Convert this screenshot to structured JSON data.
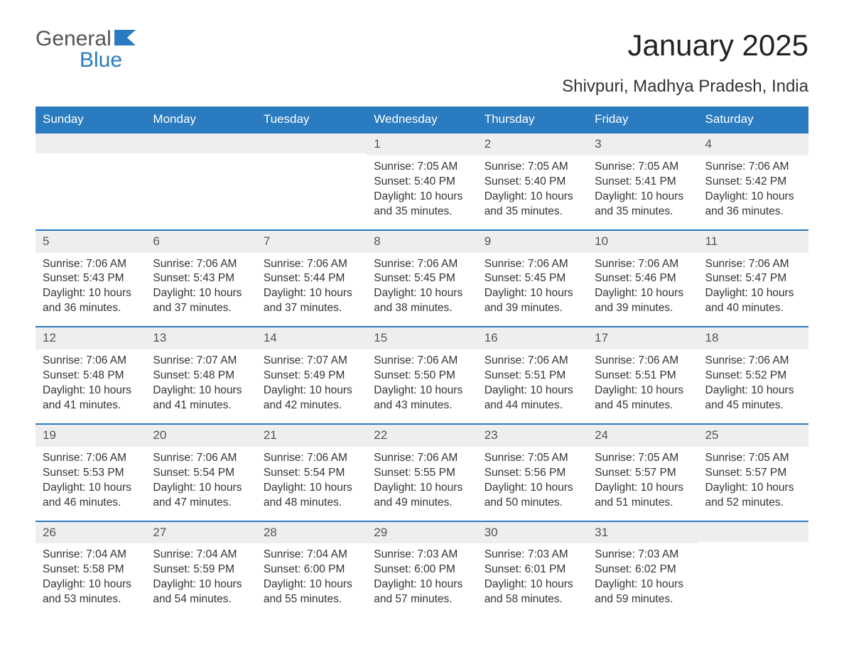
{
  "logo": {
    "line1": "General",
    "line2": "Blue"
  },
  "title": "January 2025",
  "subtitle": "Shivpuri, Madhya Pradesh, India",
  "colors": {
    "header_bg": "#2a7bbf",
    "header_text": "#ffffff",
    "daynum_bg": "#eeeeee",
    "border": "#2a7bbf",
    "body_text": "#333333",
    "page_bg": "#ffffff"
  },
  "day_labels": [
    "Sunday",
    "Monday",
    "Tuesday",
    "Wednesday",
    "Thursday",
    "Friday",
    "Saturday"
  ],
  "weeks": [
    [
      null,
      null,
      null,
      {
        "n": "1",
        "sunrise": "7:05 AM",
        "sunset": "5:40 PM",
        "daylight": "10 hours and 35 minutes."
      },
      {
        "n": "2",
        "sunrise": "7:05 AM",
        "sunset": "5:40 PM",
        "daylight": "10 hours and 35 minutes."
      },
      {
        "n": "3",
        "sunrise": "7:05 AM",
        "sunset": "5:41 PM",
        "daylight": "10 hours and 35 minutes."
      },
      {
        "n": "4",
        "sunrise": "7:06 AM",
        "sunset": "5:42 PM",
        "daylight": "10 hours and 36 minutes."
      }
    ],
    [
      {
        "n": "5",
        "sunrise": "7:06 AM",
        "sunset": "5:43 PM",
        "daylight": "10 hours and 36 minutes."
      },
      {
        "n": "6",
        "sunrise": "7:06 AM",
        "sunset": "5:43 PM",
        "daylight": "10 hours and 37 minutes."
      },
      {
        "n": "7",
        "sunrise": "7:06 AM",
        "sunset": "5:44 PM",
        "daylight": "10 hours and 37 minutes."
      },
      {
        "n": "8",
        "sunrise": "7:06 AM",
        "sunset": "5:45 PM",
        "daylight": "10 hours and 38 minutes."
      },
      {
        "n": "9",
        "sunrise": "7:06 AM",
        "sunset": "5:45 PM",
        "daylight": "10 hours and 39 minutes."
      },
      {
        "n": "10",
        "sunrise": "7:06 AM",
        "sunset": "5:46 PM",
        "daylight": "10 hours and 39 minutes."
      },
      {
        "n": "11",
        "sunrise": "7:06 AM",
        "sunset": "5:47 PM",
        "daylight": "10 hours and 40 minutes."
      }
    ],
    [
      {
        "n": "12",
        "sunrise": "7:06 AM",
        "sunset": "5:48 PM",
        "daylight": "10 hours and 41 minutes."
      },
      {
        "n": "13",
        "sunrise": "7:07 AM",
        "sunset": "5:48 PM",
        "daylight": "10 hours and 41 minutes."
      },
      {
        "n": "14",
        "sunrise": "7:07 AM",
        "sunset": "5:49 PM",
        "daylight": "10 hours and 42 minutes."
      },
      {
        "n": "15",
        "sunrise": "7:06 AM",
        "sunset": "5:50 PM",
        "daylight": "10 hours and 43 minutes."
      },
      {
        "n": "16",
        "sunrise": "7:06 AM",
        "sunset": "5:51 PM",
        "daylight": "10 hours and 44 minutes."
      },
      {
        "n": "17",
        "sunrise": "7:06 AM",
        "sunset": "5:51 PM",
        "daylight": "10 hours and 45 minutes."
      },
      {
        "n": "18",
        "sunrise": "7:06 AM",
        "sunset": "5:52 PM",
        "daylight": "10 hours and 45 minutes."
      }
    ],
    [
      {
        "n": "19",
        "sunrise": "7:06 AM",
        "sunset": "5:53 PM",
        "daylight": "10 hours and 46 minutes."
      },
      {
        "n": "20",
        "sunrise": "7:06 AM",
        "sunset": "5:54 PM",
        "daylight": "10 hours and 47 minutes."
      },
      {
        "n": "21",
        "sunrise": "7:06 AM",
        "sunset": "5:54 PM",
        "daylight": "10 hours and 48 minutes."
      },
      {
        "n": "22",
        "sunrise": "7:06 AM",
        "sunset": "5:55 PM",
        "daylight": "10 hours and 49 minutes."
      },
      {
        "n": "23",
        "sunrise": "7:05 AM",
        "sunset": "5:56 PM",
        "daylight": "10 hours and 50 minutes."
      },
      {
        "n": "24",
        "sunrise": "7:05 AM",
        "sunset": "5:57 PM",
        "daylight": "10 hours and 51 minutes."
      },
      {
        "n": "25",
        "sunrise": "7:05 AM",
        "sunset": "5:57 PM",
        "daylight": "10 hours and 52 minutes."
      }
    ],
    [
      {
        "n": "26",
        "sunrise": "7:04 AM",
        "sunset": "5:58 PM",
        "daylight": "10 hours and 53 minutes."
      },
      {
        "n": "27",
        "sunrise": "7:04 AM",
        "sunset": "5:59 PM",
        "daylight": "10 hours and 54 minutes."
      },
      {
        "n": "28",
        "sunrise": "7:04 AM",
        "sunset": "6:00 PM",
        "daylight": "10 hours and 55 minutes."
      },
      {
        "n": "29",
        "sunrise": "7:03 AM",
        "sunset": "6:00 PM",
        "daylight": "10 hours and 57 minutes."
      },
      {
        "n": "30",
        "sunrise": "7:03 AM",
        "sunset": "6:01 PM",
        "daylight": "10 hours and 58 minutes."
      },
      {
        "n": "31",
        "sunrise": "7:03 AM",
        "sunset": "6:02 PM",
        "daylight": "10 hours and 59 minutes."
      },
      null
    ]
  ],
  "labels": {
    "sunrise": "Sunrise: ",
    "sunset": "Sunset: ",
    "daylight": "Daylight: "
  }
}
